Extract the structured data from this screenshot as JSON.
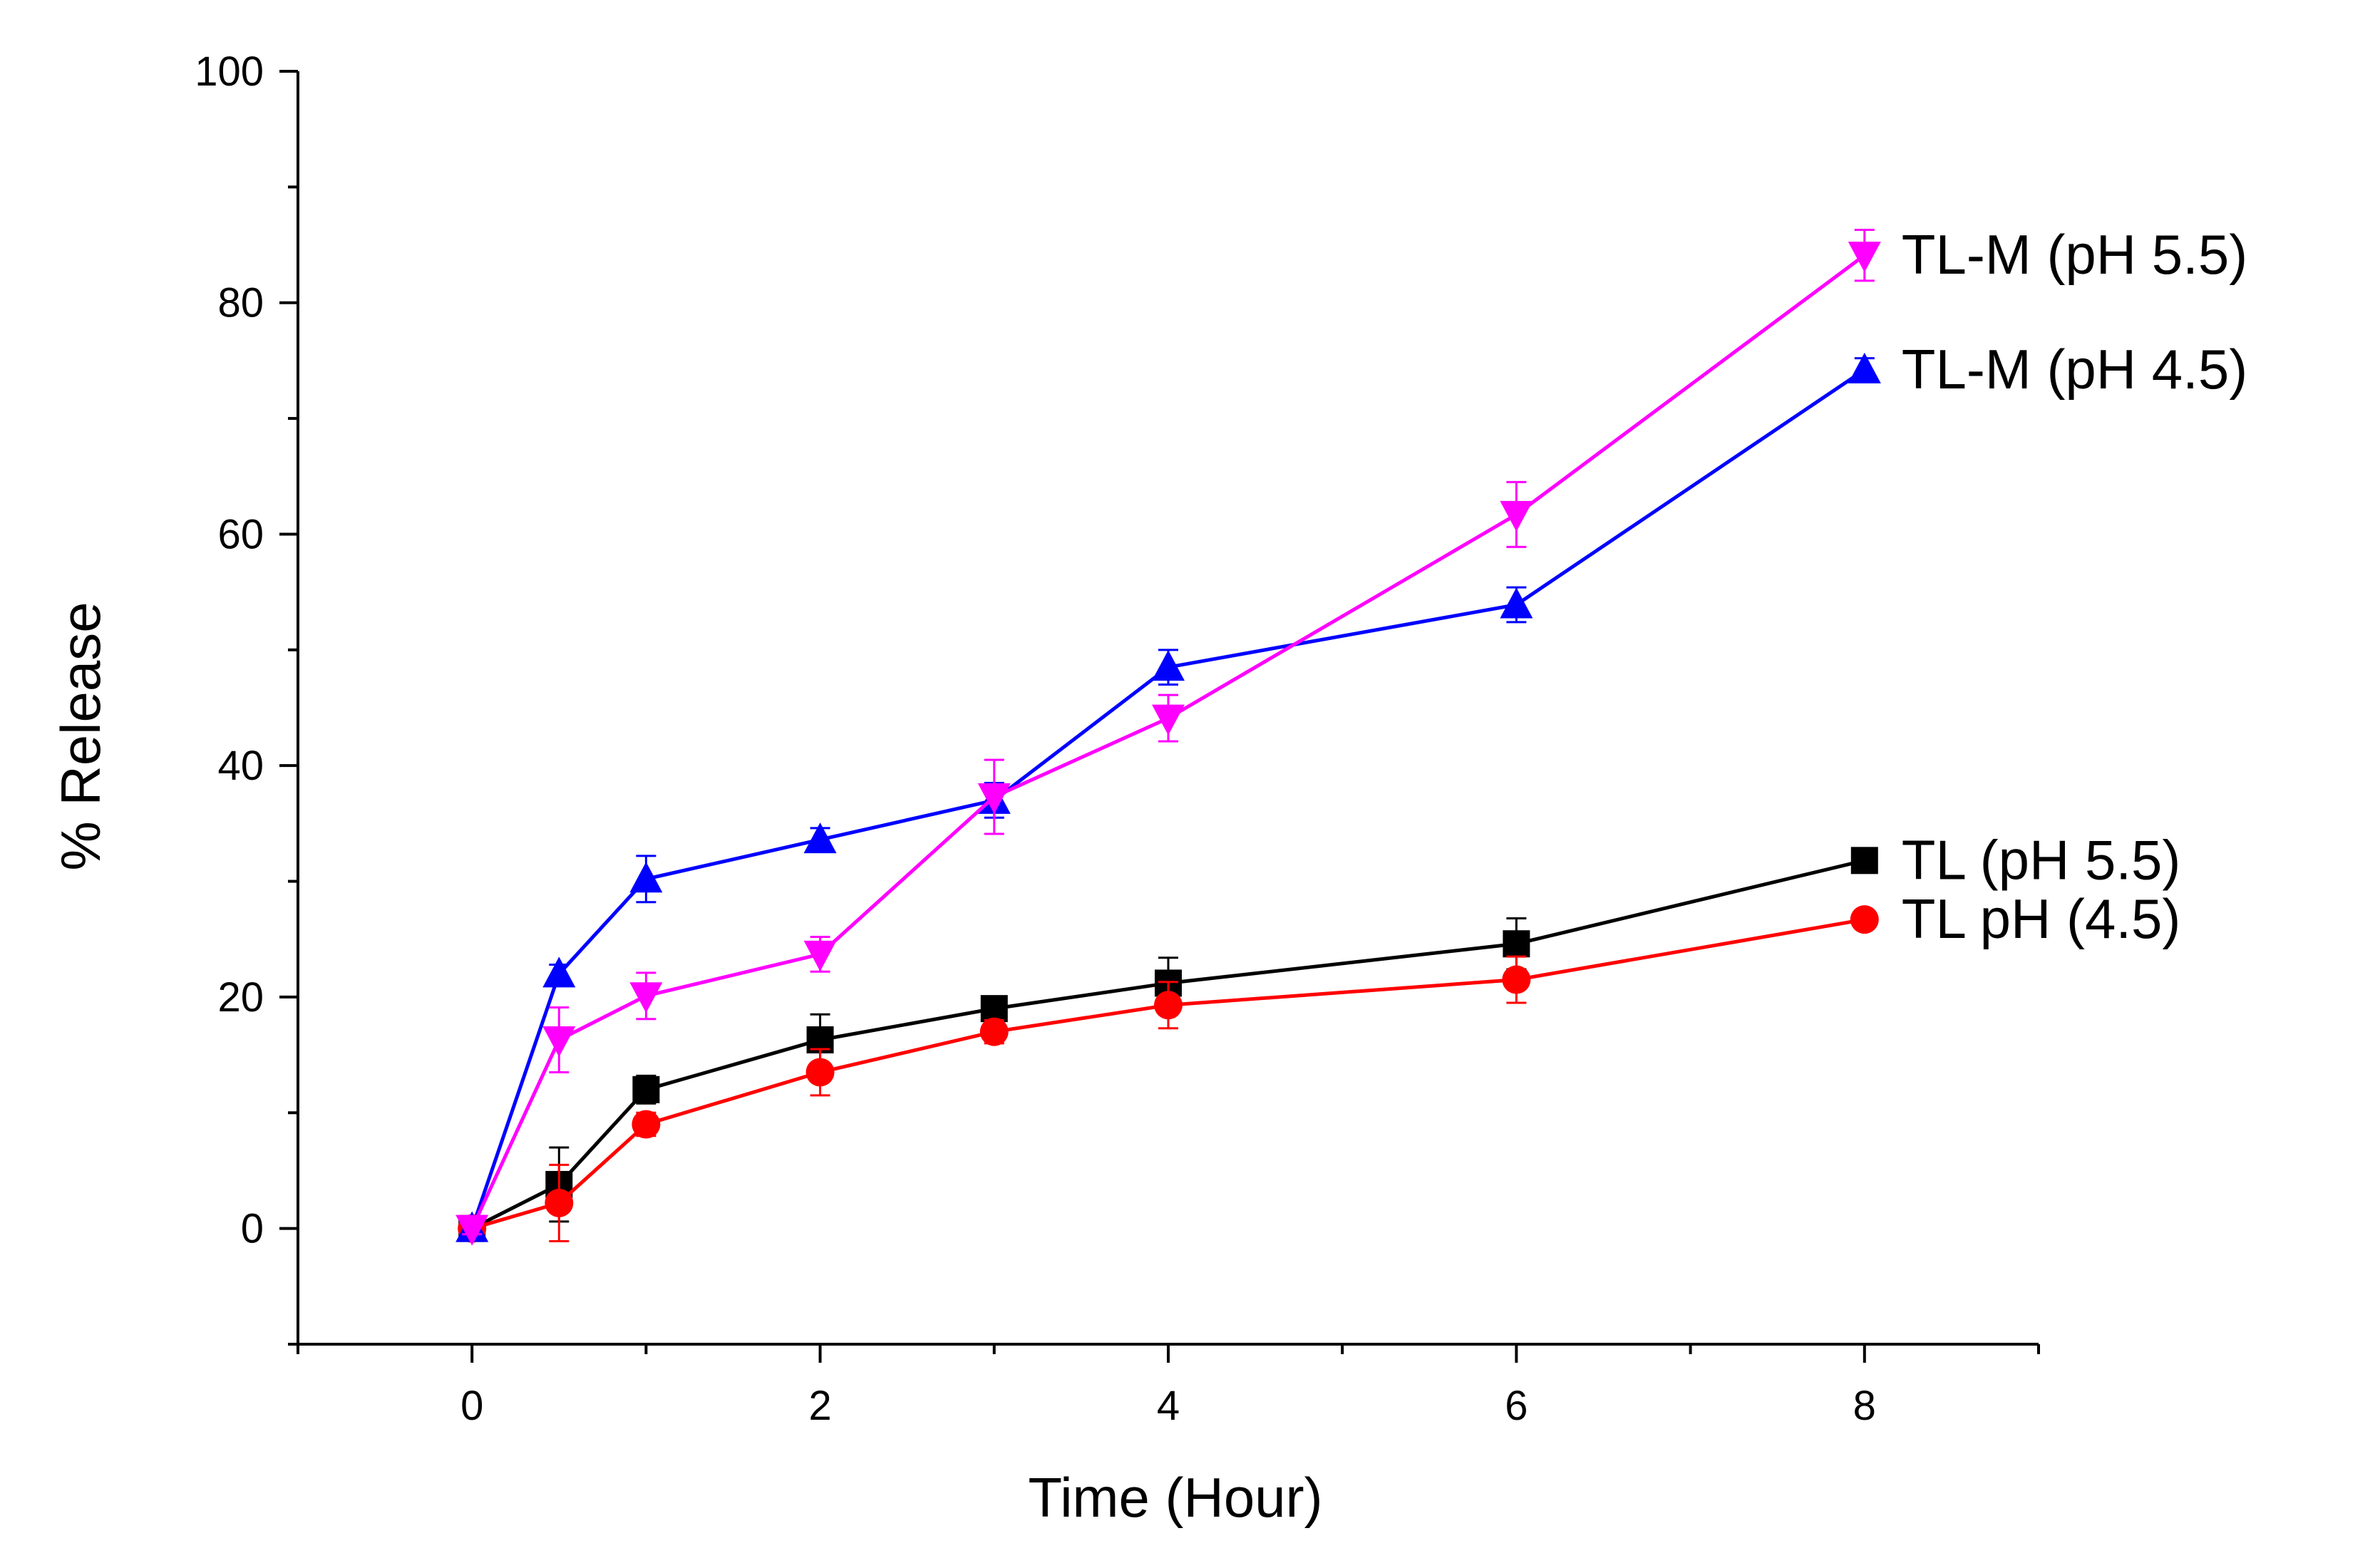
{
  "chart_data": {
    "type": "line",
    "title": "",
    "xlabel": "Time (Hour)",
    "ylabel": "% Release",
    "xlim": [
      -1,
      9
    ],
    "ylim": [
      -10,
      100
    ],
    "x_ticks": [
      0,
      2,
      4,
      6,
      8
    ],
    "x_minor_ticks": [
      -1,
      1,
      3,
      5,
      7,
      9
    ],
    "y_ticks": [
      0,
      20,
      40,
      60,
      80,
      100
    ],
    "y_minor_ticks": [
      -10,
      10,
      30,
      50,
      70,
      90
    ],
    "x_tick_labels": [
      "0",
      "2",
      "4",
      "6",
      "8"
    ],
    "y_tick_labels": [
      "0",
      "20",
      "40",
      "60",
      "80",
      "100"
    ],
    "grid": false,
    "x": [
      0,
      0.5,
      1,
      2,
      3,
      4,
      6,
      8
    ],
    "series": [
      {
        "name": "TL (pH 5.5)",
        "color": "#000000",
        "marker": "square",
        "values": [
          0,
          3.8,
          12,
          16.3,
          19,
          21.2,
          24.6,
          31.8
        ],
        "errors": [
          0.5,
          3.2,
          1.2,
          2.2,
          1.0,
          2.2,
          2.2,
          0.8
        ]
      },
      {
        "name": "TL pH (4.5)",
        "color": "#ff0000",
        "marker": "circle",
        "values": [
          0,
          2.2,
          9,
          13.5,
          17,
          19.3,
          21.5,
          26.7
        ],
        "errors": [
          0.5,
          3.3,
          1.0,
          2.0,
          1.0,
          2.0,
          2.0,
          0.8
        ]
      },
      {
        "name": "TL-M (pH 4.5)",
        "color": "#0000ff",
        "marker": "triangle-up",
        "values": [
          0,
          22,
          30.2,
          33.6,
          37,
          48.5,
          53.9,
          74.2
        ],
        "errors": [
          0.5,
          0.8,
          2.0,
          1.0,
          1.5,
          1.5,
          1.5,
          1.0
        ]
      },
      {
        "name": "TL-M (pH 5.5)",
        "color": "#ff00ff",
        "marker": "triangle-down",
        "values": [
          0,
          16.3,
          20.1,
          23.7,
          37.3,
          44.1,
          61.7,
          84.1
        ],
        "errors": [
          0.5,
          2.8,
          2.0,
          1.5,
          3.2,
          2.0,
          2.8,
          2.2
        ]
      }
    ]
  }
}
